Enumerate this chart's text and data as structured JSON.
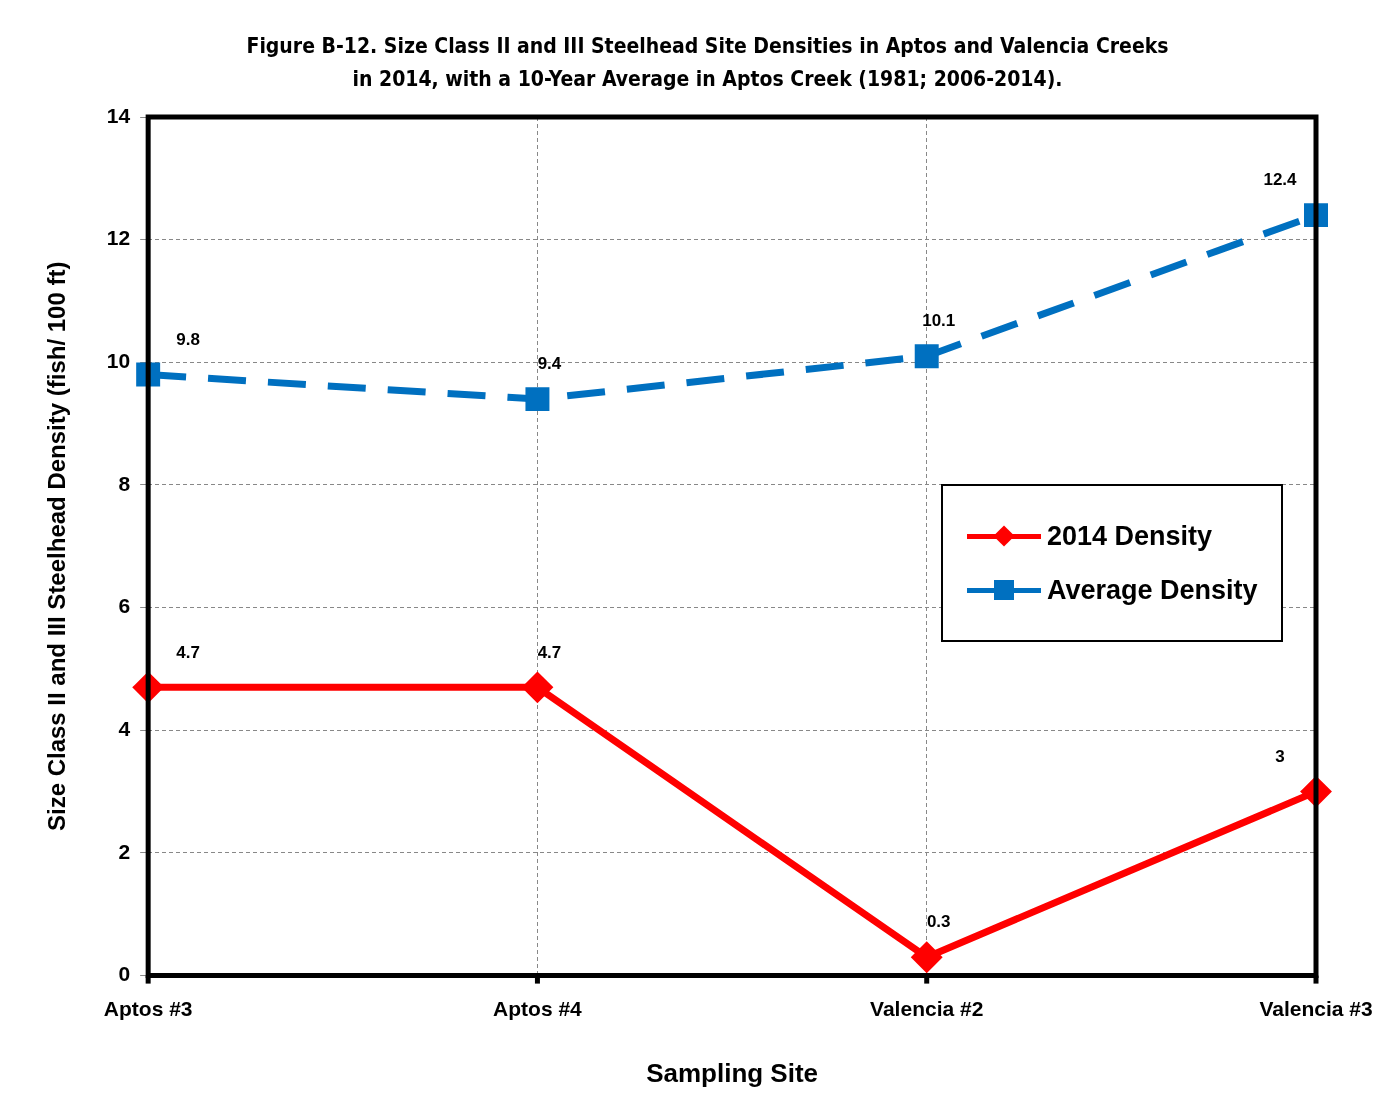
{
  "chart_data": {
    "type": "line",
    "title": "Figure B-12. Size Class II and III Steelhead Site Densities in Aptos and Valencia Creeks in 2014,  with a 10-Year Average in Aptos Creek (1981; 2006-2014).",
    "xlabel": "Sampling Site",
    "ylabel": "Size Class II and III Steelhead Density (fish/ 100 ft)",
    "categories": [
      "Aptos #3",
      "Aptos #4",
      "Valencia #2",
      "Valencia #3"
    ],
    "series": [
      {
        "name": "2014 Density",
        "color": "#ff0000",
        "values": [
          4.7,
          4.7,
          0.3,
          3
        ],
        "marker": "diamond",
        "line_style": "solid"
      },
      {
        "name": "Average Density",
        "color": "#0070c0",
        "values": [
          9.8,
          9.4,
          10.1,
          12.4
        ],
        "marker": "square",
        "line_style": "dashed"
      }
    ],
    "ylim": [
      0,
      14
    ],
    "yticks": [
      0,
      2,
      4,
      6,
      8,
      10,
      12,
      14
    ],
    "grid": true,
    "legend": "right",
    "data_labels": true
  }
}
